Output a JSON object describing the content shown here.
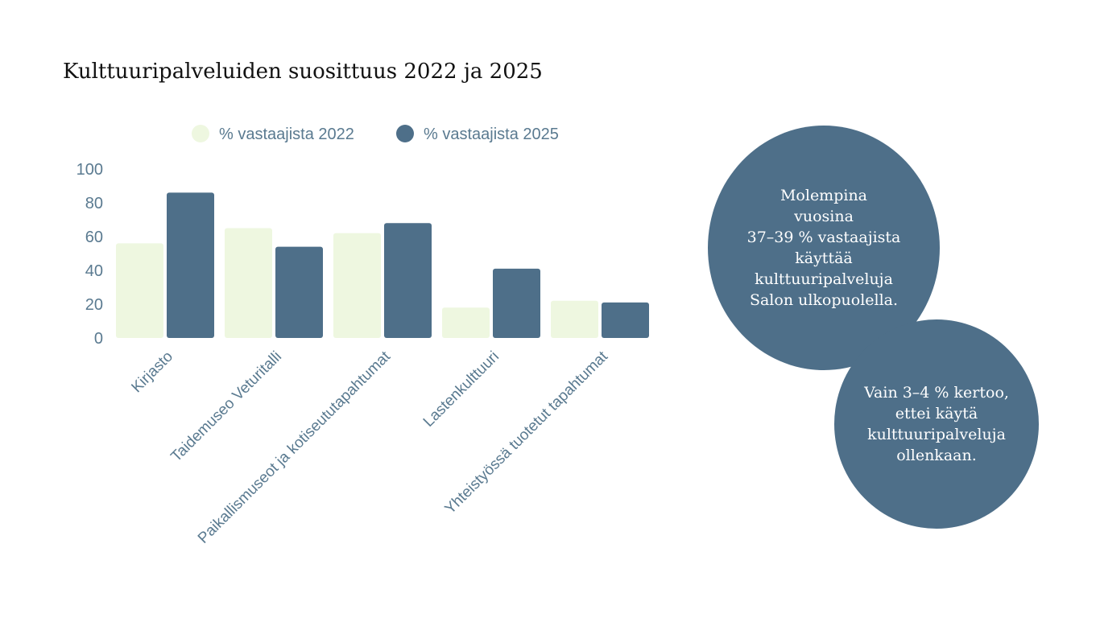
{
  "title": "Kulttuuripalveluiden suosittuus 2022 ja 2025",
  "colors": {
    "series_2022": "#eef7e0",
    "series_2025": "#4e6f89",
    "axis_text": "#5a7a90",
    "bubble": "#4e6f89"
  },
  "chart_data": {
    "type": "bar",
    "title": "Kulttuuripalveluiden suosittuus 2022 ja 2025",
    "xlabel": "",
    "ylabel": "",
    "ylim": [
      0,
      100
    ],
    "yticks": [
      0,
      20,
      40,
      60,
      80,
      100
    ],
    "grid": false,
    "legend": "top",
    "categories": [
      "Kirjasto",
      "Taidemuseo Veturitalli",
      "Paikallismuseot ja kotiseututapahtumat",
      "Lastenkulttuuri",
      "Yhteistyössä tuotetut tapahtumat"
    ],
    "series": [
      {
        "name": "% vastaajista 2022",
        "values": [
          56,
          65,
          62,
          18,
          22
        ]
      },
      {
        "name": "% vastaajista 2025",
        "values": [
          86,
          54,
          68,
          41,
          21
        ]
      }
    ]
  },
  "bubbles": [
    {
      "text": "Molempina\nvuosina\n37–39 % vastaajista\nkäyttää\nkulttuuripalveluja\nSalon ulkopuolella."
    },
    {
      "text": "Vain 3–4 % kertoo,\nettei käytä\nkulttuuripalveluja\nollenkaan."
    }
  ]
}
